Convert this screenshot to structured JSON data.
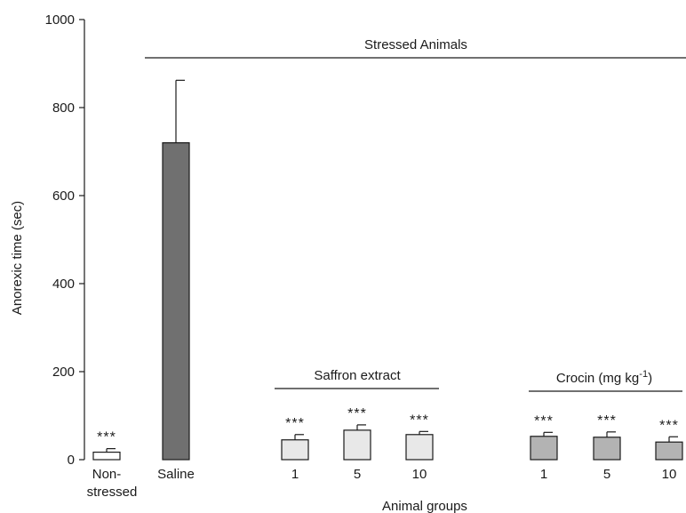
{
  "chart_data": {
    "type": "bar",
    "title": "",
    "xlabel": "Animal groups",
    "ylabel": "Anorexic time (sec)",
    "ylim": [
      0,
      1000
    ],
    "yticks": [
      "0",
      "200",
      "400",
      "600",
      "800",
      "1000"
    ],
    "grid": false,
    "bars": [
      {
        "label": "Non-",
        "label2": "stressed",
        "value": 17,
        "error": 8,
        "color": "#ffffff",
        "sig": "***"
      },
      {
        "label": "Saline",
        "label2": "",
        "value": 720,
        "error": 142,
        "color": "#707070",
        "sig": ""
      },
      {
        "label": "1",
        "label2": "",
        "value": 45,
        "error": 12,
        "color": "#e8e8e8",
        "sig": "***"
      },
      {
        "label": "5",
        "label2": "",
        "value": 67,
        "error": 12,
        "color": "#e8e8e8",
        "sig": "***"
      },
      {
        "label": "10",
        "label2": "",
        "value": 57,
        "error": 7,
        "color": "#e8e8e8",
        "sig": "***"
      },
      {
        "label": "1",
        "label2": "",
        "value": 53,
        "error": 9,
        "color": "#b3b3b3",
        "sig": "***"
      },
      {
        "label": "5",
        "label2": "",
        "value": 51,
        "error": 12,
        "color": "#b3b3b3",
        "sig": "***"
      },
      {
        "label": "10",
        "label2": "",
        "value": 40,
        "error": 12,
        "color": "#b3b3b3",
        "sig": "***"
      }
    ],
    "annotations": {
      "stressed": "Stressed Animals",
      "saffron": "Saffron extract",
      "crocin_main": "Crocin (mg kg",
      "crocin_sup": "-1",
      "crocin_close": ")"
    }
  }
}
